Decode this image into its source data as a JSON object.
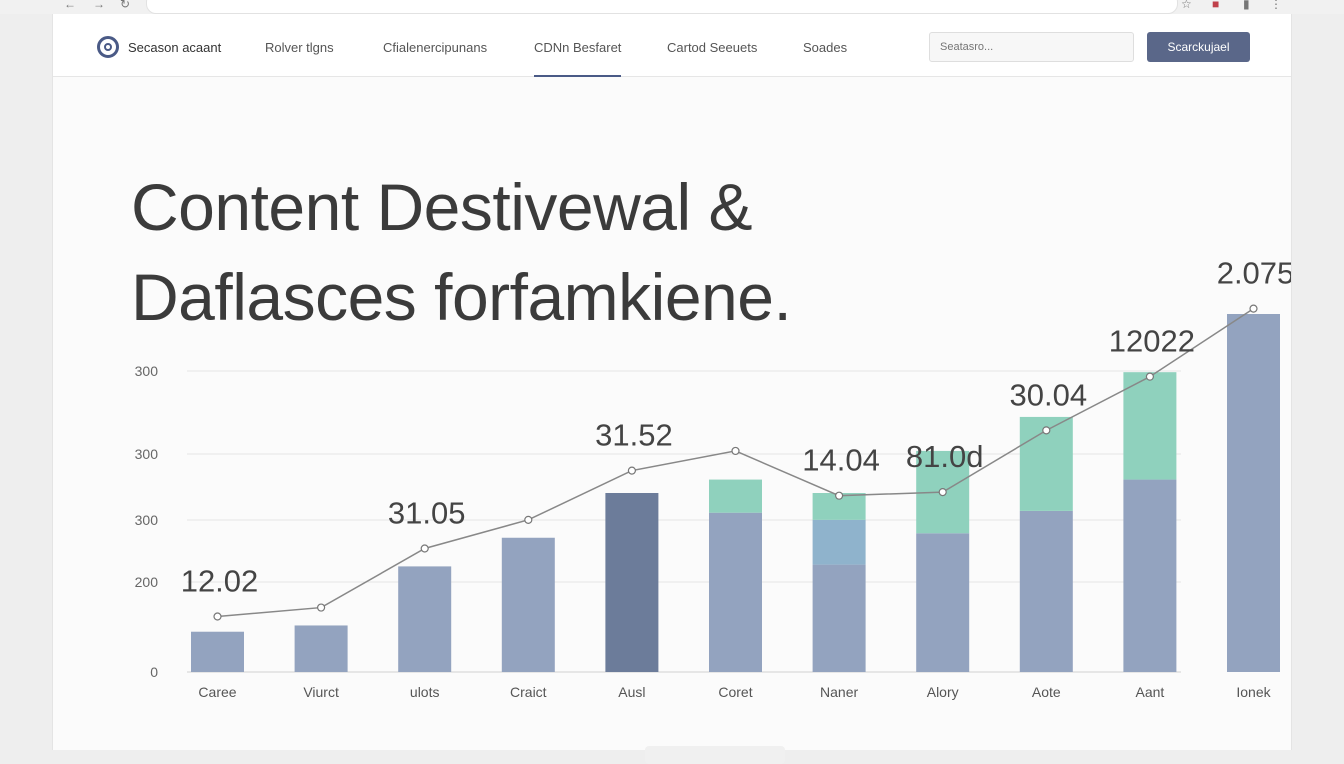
{
  "nav": {
    "brand": "Secason acaant",
    "links": [
      "Rolver tlgns",
      "Cfialenercipunans",
      "CDNn Besfaret",
      "Cartod Seeuets",
      "Soades"
    ],
    "active_link": 2,
    "search_placeholder": "Seatasro...",
    "search_button": "Scarckujael"
  },
  "headline": {
    "line1": "Content Destivewal &",
    "line2": "Daflasces forfamkiene."
  },
  "colors": {
    "accent": "#5a6789",
    "bar_blue_light": "#93a3bf",
    "bar_blue_dark": "#6c7c9a",
    "bar_teal": "#8fd1bd",
    "bar_lightblue": "#8fb3cc"
  },
  "chart_data": {
    "type": "bar",
    "categories": [
      "Caree",
      "Viurct",
      "ulots",
      "Craict",
      "Ausl",
      "Coret",
      "Naner",
      "Alory",
      "Aote",
      "Aant",
      "Ionek"
    ],
    "y_tick_labels": [
      "0",
      "200",
      "300",
      "300",
      "300"
    ],
    "series": [
      {
        "values": [
          45,
          52,
          118,
          150,
          200,
          178,
          120,
          155,
          180,
          215,
          400
        ]
      },
      {
        "values": [
          0,
          0,
          0,
          0,
          0,
          0,
          50,
          0,
          0,
          0,
          0
        ]
      },
      {
        "values": [
          0,
          0,
          0,
          0,
          0,
          37,
          30,
          92,
          105,
          120,
          0
        ]
      }
    ],
    "trend_line": [
      62,
      72,
      138,
      170,
      225,
      247,
      197,
      201,
      270,
      330,
      406
    ],
    "data_labels": [
      "12.02",
      "",
      "31.05",
      "",
      "31.52",
      "",
      "14.04",
      "81.0d",
      "30.04",
      "12022",
      "2.075"
    ]
  }
}
